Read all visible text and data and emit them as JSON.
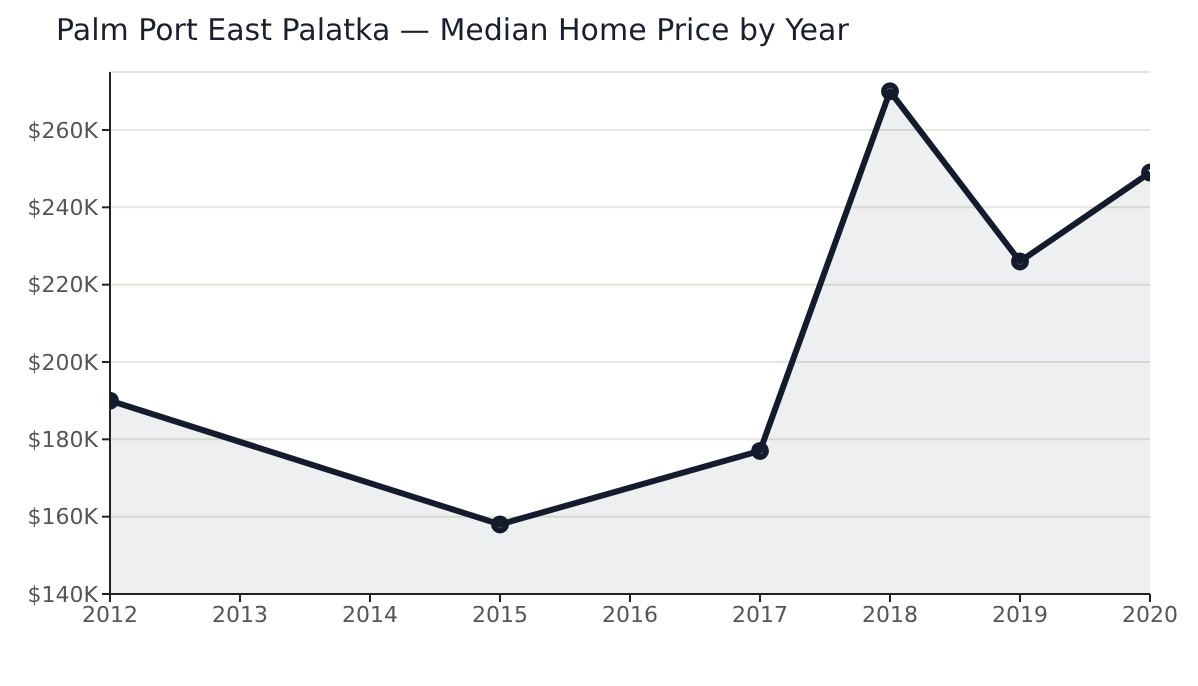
{
  "chart_data": {
    "type": "area",
    "title": "Palm Port East Palatka — Median Home Price by Year",
    "x": [
      2012,
      2015,
      2017,
      2018,
      2019,
      2020
    ],
    "series": [
      {
        "color": "#141b2d",
        "values": [
          190000,
          158000,
          177000,
          270000,
          226000,
          249000
        ]
      }
    ],
    "xlim": [
      2012,
      2020
    ],
    "xticks": [
      2012,
      2013,
      2014,
      2015,
      2016,
      2017,
      2018,
      2019,
      2020
    ],
    "ylim": [
      140000,
      275000
    ],
    "yticks": [
      {
        "value": 140000,
        "label": "$140K"
      },
      {
        "value": 160000,
        "label": "$160K"
      },
      {
        "value": 180000,
        "label": "$180K"
      },
      {
        "value": 200000,
        "label": "$200K"
      },
      {
        "value": 220000,
        "label": "$220K"
      },
      {
        "value": 240000,
        "label": "$240K"
      },
      {
        "value": 260000,
        "label": "$260K"
      }
    ],
    "grid": "y",
    "marker": "circle",
    "line_style": "solid"
  }
}
